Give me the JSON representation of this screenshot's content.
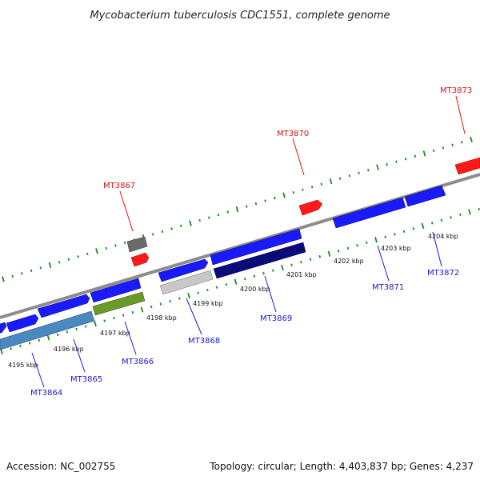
{
  "title": "Mycobacterium tuberculosis CDC1551, complete genome",
  "footer": {
    "accession": "Accession: NC_002755",
    "summary": "Topology: circular; Length: 4,403,837 bp; Genes: 4,237"
  },
  "colors": {
    "backbone": "#8c8c8c",
    "tick": "#1a8a1a",
    "gene_blue": "#1a1aff",
    "gene_red": "#ff1a1a",
    "gene_navy": "#0a0a7a",
    "gene_steel": "#4a88c0",
    "gene_olive": "#6a9a2a",
    "gene_silver": "#c8c8c8",
    "gene_gray": "#6a6a6a",
    "label_blue": "#1a1acc",
    "label_red": "#dd1111"
  },
  "kbp_labels": [
    "4195 kbp",
    "4196 kbp",
    "4197 kbp",
    "4198 kbp",
    "4199 kbp",
    "4200 kbp",
    "4201 kbp",
    "4202 kbp",
    "4203 kbp",
    "4204 kbp"
  ],
  "gene_labels_blue": [
    "MT3864",
    "MT3865",
    "MT3866",
    "MT3868",
    "MT3869",
    "MT3871",
    "MT3872"
  ],
  "gene_labels_red": [
    "MT3867",
    "MT3870",
    "MT3873"
  ]
}
